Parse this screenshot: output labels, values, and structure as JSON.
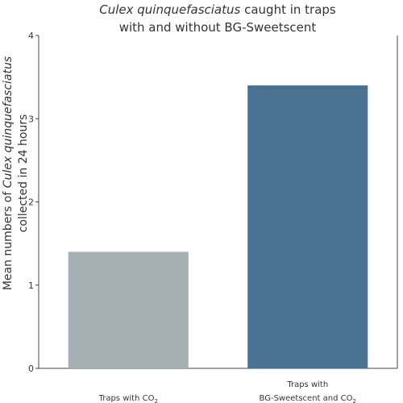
{
  "chart_data": {
    "type": "bar",
    "title": {
      "line1_italic": "Culex quinquefasciatus",
      "line1_rest": " caught in traps",
      "line2": "with and without BG-Sweetscent"
    },
    "ylabel": {
      "line1_prefix": "Mean numbers of ",
      "line1_italic": "Culex quinquefasciatus",
      "line2": "collected in 24 hours"
    },
    "ylim": [
      0,
      4
    ],
    "yticks": [
      "0",
      "1",
      "2",
      "3",
      "4"
    ],
    "grid": false,
    "categories": [
      {
        "lines": [
          {
            "text": "Traps with CO",
            "sub": "2"
          }
        ]
      },
      {
        "lines": [
          {
            "text": "Traps with",
            "sub": ""
          },
          {
            "text": "BG-Sweetscent and CO",
            "sub": "2"
          }
        ]
      }
    ],
    "values": [
      1.4,
      3.4
    ],
    "colors": [
      "#a5afb4",
      "#4a7290"
    ]
  }
}
